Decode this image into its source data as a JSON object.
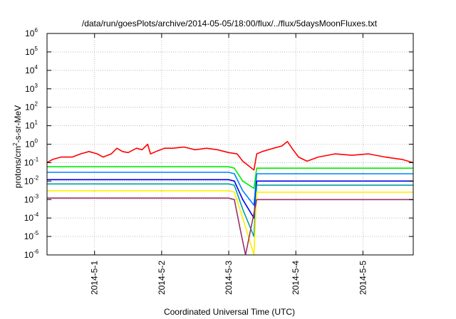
{
  "chart_data": {
    "type": "line",
    "title": "/data/run/goesPlots/archive/2014-05-05/18:00/flux/../flux/5daysMoonFluxes.txt",
    "xlabel": "Coordinated Universal Time (UTC)",
    "ylabel": {
      "base": "protons/cm",
      "sup": "2",
      "rest": "-s-sr-MeV"
    },
    "y_scale": "log",
    "ylim": [
      1e-06,
      1000000.0
    ],
    "y_tick_exponents": [
      -6,
      -5,
      -4,
      -3,
      -2,
      -1,
      0,
      1,
      2,
      3,
      4,
      5,
      6
    ],
    "y_tick_base": "10",
    "xlim": [
      "2014-04-30T07:00",
      "2014-05-05T18:00"
    ],
    "x_ticks": [
      {
        "t": "2014-05-01T00:00",
        "label": "2014-5-1"
      },
      {
        "t": "2014-05-02T00:00",
        "label": "2014-5-2"
      },
      {
        "t": "2014-05-03T00:00",
        "label": "2014-5-3"
      },
      {
        "t": "2014-05-04T00:00",
        "label": "2014-5-4"
      },
      {
        "t": "2014-05-05T00:00",
        "label": "2014-5-5"
      }
    ],
    "grid": true,
    "series": [
      {
        "color": "#ff0000",
        "points": [
          [
            "2014-04-30T07:00",
            0.1
          ],
          [
            "2014-04-30T09:00",
            0.15
          ],
          [
            "2014-04-30T12:00",
            0.2
          ],
          [
            "2014-04-30T16:00",
            0.2
          ],
          [
            "2014-04-30T19:00",
            0.3
          ],
          [
            "2014-04-30T22:00",
            0.4
          ],
          [
            "2014-05-01T01:00",
            0.3
          ],
          [
            "2014-05-01T03:00",
            0.2
          ],
          [
            "2014-05-01T06:00",
            0.3
          ],
          [
            "2014-05-01T08:00",
            0.6
          ],
          [
            "2014-05-01T10:00",
            0.4
          ],
          [
            "2014-05-01T12:00",
            0.35
          ],
          [
            "2014-05-01T15:00",
            0.6
          ],
          [
            "2014-05-01T17:00",
            0.5
          ],
          [
            "2014-05-01T19:00",
            1.0
          ],
          [
            "2014-05-01T20:00",
            0.3
          ],
          [
            "2014-05-01T22:00",
            0.4
          ],
          [
            "2014-05-02T01:00",
            0.6
          ],
          [
            "2014-05-02T04:00",
            0.6
          ],
          [
            "2014-05-02T08:00",
            0.7
          ],
          [
            "2014-05-02T12:00",
            0.5
          ],
          [
            "2014-05-02T16:00",
            0.6
          ],
          [
            "2014-05-02T20:00",
            0.5
          ],
          [
            "2014-05-03T00:00",
            0.35
          ],
          [
            "2014-05-03T03:00",
            0.3
          ],
          [
            "2014-05-03T05:00",
            0.12
          ],
          [
            "2014-05-03T09:00",
            0.04
          ],
          [
            "2014-05-03T10:00",
            0.3
          ],
          [
            "2014-05-03T12:00",
            0.4
          ],
          [
            "2014-05-03T16:00",
            0.6
          ],
          [
            "2014-05-03T19:00",
            0.8
          ],
          [
            "2014-05-03T21:00",
            1.4
          ],
          [
            "2014-05-03T23:00",
            0.5
          ],
          [
            "2014-05-04T01:00",
            0.2
          ],
          [
            "2014-05-04T04:00",
            0.12
          ],
          [
            "2014-05-04T08:00",
            0.2
          ],
          [
            "2014-05-04T14:00",
            0.3
          ],
          [
            "2014-05-04T20:00",
            0.25
          ],
          [
            "2014-05-05T02:00",
            0.3
          ],
          [
            "2014-05-05T08:00",
            0.2
          ],
          [
            "2014-05-05T14:00",
            0.15
          ],
          [
            "2014-05-05T18:00",
            0.1
          ]
        ]
      },
      {
        "color": "#00ee00",
        "points": [
          [
            "2014-04-30T07:00",
            0.06
          ],
          [
            "2014-05-01T00:00",
            0.06
          ],
          [
            "2014-05-02T00:00",
            0.06
          ],
          [
            "2014-05-03T00:00",
            0.06
          ],
          [
            "2014-05-03T02:00",
            0.05
          ],
          [
            "2014-05-03T05:00",
            0.01
          ],
          [
            "2014-05-03T09:00",
            0.004
          ],
          [
            "2014-05-03T10:00",
            0.05
          ],
          [
            "2014-05-04T00:00",
            0.05
          ],
          [
            "2014-05-05T00:00",
            0.05
          ],
          [
            "2014-05-05T18:00",
            0.05
          ]
        ]
      },
      {
        "color": "#0080ff",
        "points": [
          [
            "2014-04-30T07:00",
            0.03
          ],
          [
            "2014-05-01T00:00",
            0.03
          ],
          [
            "2014-05-02T00:00",
            0.03
          ],
          [
            "2014-05-03T00:00",
            0.03
          ],
          [
            "2014-05-03T02:00",
            0.025
          ],
          [
            "2014-05-03T05:00",
            0.003
          ],
          [
            "2014-05-03T09:00",
            0.0005
          ],
          [
            "2014-05-03T10:00",
            0.025
          ],
          [
            "2014-05-04T00:00",
            0.025
          ],
          [
            "2014-05-05T00:00",
            0.025
          ],
          [
            "2014-05-05T18:00",
            0.025
          ]
        ]
      },
      {
        "color": "#0000ee",
        "points": [
          [
            "2014-04-30T07:00",
            0.012
          ],
          [
            "2014-05-01T00:00",
            0.012
          ],
          [
            "2014-05-02T00:00",
            0.012
          ],
          [
            "2014-05-03T00:00",
            0.012
          ],
          [
            "2014-05-03T02:00",
            0.01
          ],
          [
            "2014-05-03T05:00",
            0.001
          ],
          [
            "2014-05-03T09:00",
            0.0001
          ],
          [
            "2014-05-03T10:00",
            0.01
          ],
          [
            "2014-05-04T00:00",
            0.01
          ],
          [
            "2014-05-05T00:00",
            0.01
          ],
          [
            "2014-05-05T18:00",
            0.01
          ]
        ]
      },
      {
        "color": "#00a0a0",
        "points": [
          [
            "2014-04-30T07:00",
            0.007
          ],
          [
            "2014-05-01T00:00",
            0.007
          ],
          [
            "2014-05-02T00:00",
            0.007
          ],
          [
            "2014-05-03T00:00",
            0.007
          ],
          [
            "2014-05-03T02:00",
            0.006
          ],
          [
            "2014-05-03T05:00",
            0.0003
          ],
          [
            "2014-05-03T09:00",
            1e-05
          ],
          [
            "2014-05-03T10:00",
            0.006
          ],
          [
            "2014-05-04T00:00",
            0.006
          ],
          [
            "2014-05-05T00:00",
            0.006
          ],
          [
            "2014-05-05T18:00",
            0.006
          ]
        ]
      },
      {
        "color": "#ffee00",
        "points": [
          [
            "2014-04-30T07:00",
            0.003
          ],
          [
            "2014-05-01T00:00",
            0.003
          ],
          [
            "2014-05-02T00:00",
            0.003
          ],
          [
            "2014-05-03T00:00",
            0.003
          ],
          [
            "2014-05-03T02:00",
            0.0025
          ],
          [
            "2014-05-03T05:00",
            0.0001
          ],
          [
            "2014-05-03T09:00",
            1e-06
          ],
          [
            "2014-05-03T10:00",
            0.0025
          ],
          [
            "2014-05-04T00:00",
            0.0025
          ],
          [
            "2014-05-05T00:00",
            0.0025
          ],
          [
            "2014-05-05T18:00",
            0.0025
          ]
        ]
      },
      {
        "color": "#993366",
        "points": [
          [
            "2014-04-30T07:00",
            0.0012
          ],
          [
            "2014-05-01T00:00",
            0.0012
          ],
          [
            "2014-05-02T00:00",
            0.0012
          ],
          [
            "2014-05-03T00:00",
            0.0012
          ],
          [
            "2014-05-03T02:00",
            0.001
          ],
          [
            "2014-05-03T04:00",
            3e-05
          ],
          [
            "2014-05-03T06:00",
            1e-06
          ],
          [
            "2014-05-03T10:00",
            0.001
          ],
          [
            "2014-05-04T00:00",
            0.001
          ],
          [
            "2014-05-05T00:00",
            0.001
          ],
          [
            "2014-05-05T18:00",
            0.001
          ]
        ]
      }
    ]
  }
}
